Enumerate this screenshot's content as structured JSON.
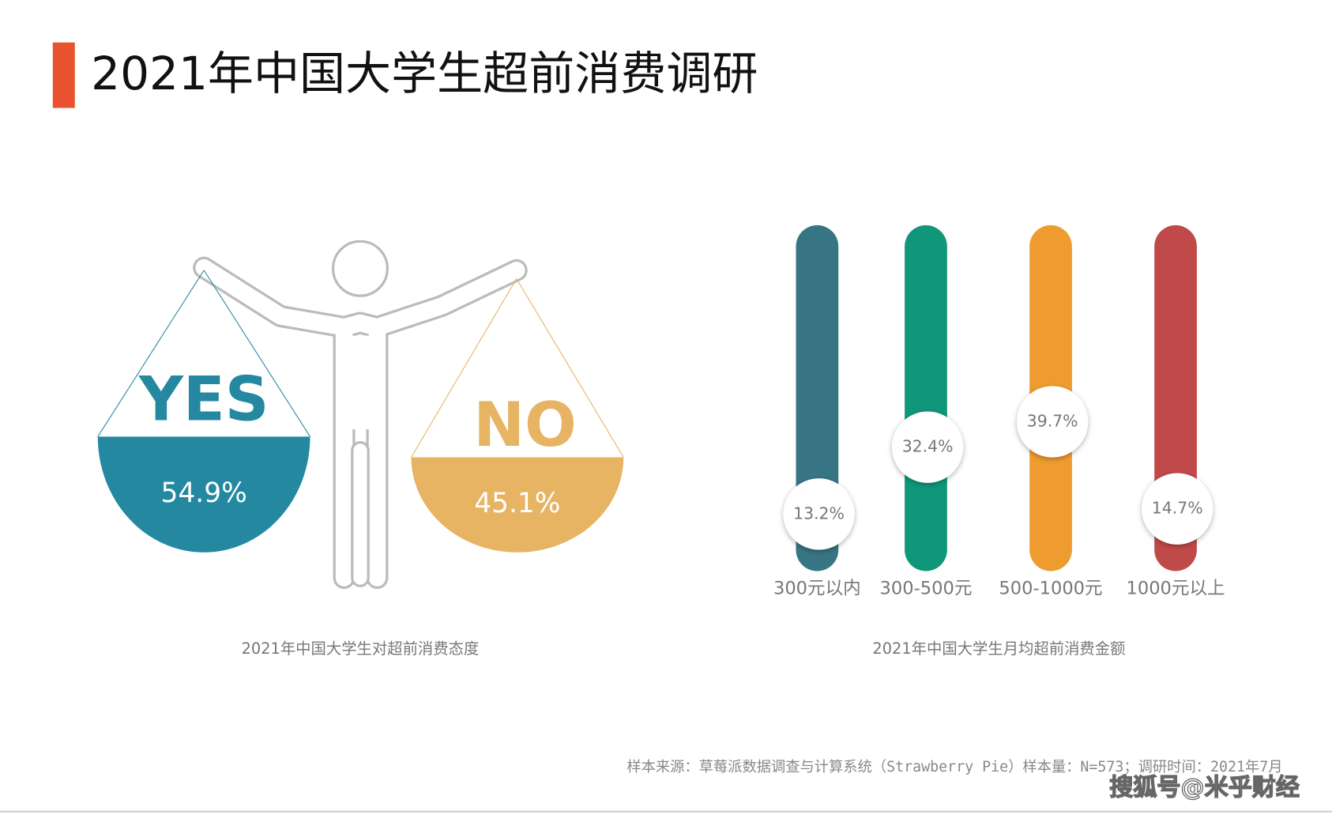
{
  "header": {
    "title": "2021年中国大学生超前消费调研"
  },
  "chart_data": [
    {
      "type": "balance",
      "title": "2021年中国大学生对超前消费态度",
      "categories": [
        "YES",
        "NO"
      ],
      "values": [
        54.9,
        45.1
      ],
      "value_labels": [
        "54.9%",
        "45.1%"
      ],
      "colors": [
        "#2388a0",
        "#e6b463"
      ]
    },
    {
      "type": "pill",
      "title": "2021年中国大学生月均超前消费金额",
      "categories": [
        "300元以内",
        "300-500元",
        "500-1000元",
        "1000元以上"
      ],
      "values": [
        13.2,
        32.4,
        39.7,
        14.7
      ],
      "value_labels": [
        "13.2%",
        "32.4%",
        "39.7%",
        "14.7%"
      ],
      "colors": [
        "#377585",
        "#10977a",
        "#ee9c30",
        "#c04a4a"
      ]
    }
  ],
  "footer": {
    "source": "样本来源：草莓派数据调查与计算系统（Strawberry Pie）样本量：N=573；调研时间：2021年7月",
    "watermark": "搜狐号@米乎财经"
  }
}
